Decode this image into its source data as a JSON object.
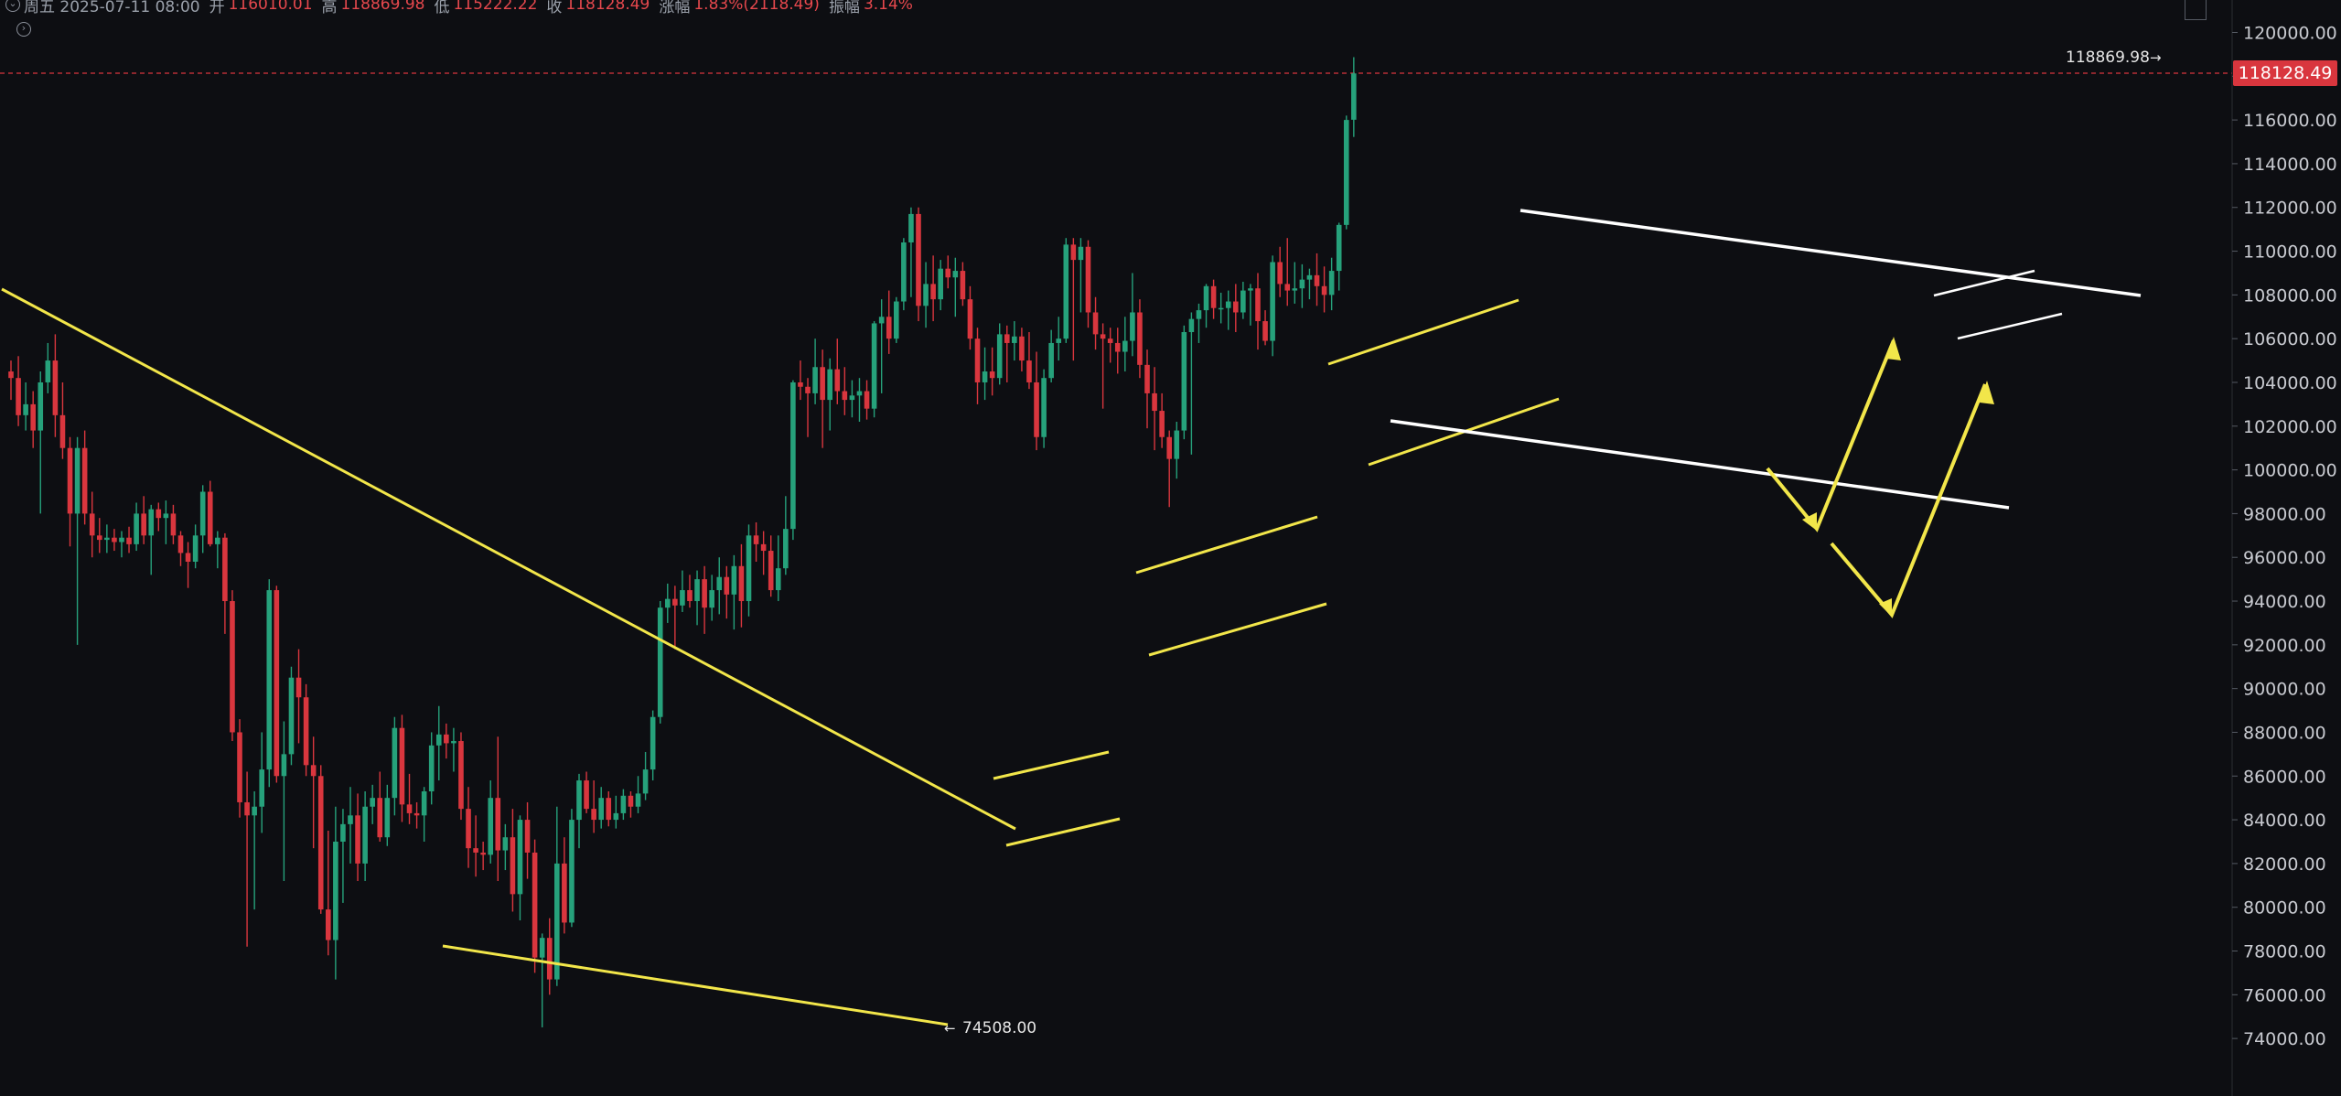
{
  "header": {
    "weekday_date": "周五 2025-07-11 08:00",
    "open_label": "开",
    "open_value": "116010.01",
    "high_label": "高",
    "high_value": "118869.98",
    "low_label": "低",
    "low_value": "115222.22",
    "close_label": "收",
    "close_value": "118128.49",
    "change_label": "涨幅",
    "change_value": "1.83%(2118.49)",
    "amplitude_label": "振幅",
    "amplitude_value": "3.14%"
  },
  "colors": {
    "up": "#26a17b",
    "down": "#d9363e",
    "background": "#0d0e12",
    "trendline_yellow": "#f2e64a",
    "trendline_white": "#ffffff"
  },
  "icons": {
    "expand": "chevron-right-icon",
    "collapse": "chevron-down-icon",
    "corner": "fullscreen-icon"
  },
  "chart_data": {
    "type": "candlestick",
    "ylim": [
      73000,
      121500
    ],
    "y_ticks": [
      "74000.00",
      "76000.00",
      "78000.00",
      "80000.00",
      "82000.00",
      "84000.00",
      "86000.00",
      "88000.00",
      "90000.00",
      "92000.00",
      "94000.00",
      "96000.00",
      "98000.00",
      "100000.00",
      "102000.00",
      "104000.00",
      "106000.00",
      "108000.00",
      "110000.00",
      "112000.00",
      "114000.00",
      "116000.00",
      "118000.00",
      "120000.00"
    ],
    "last_price": "118128.49",
    "high_marker": "118869.98",
    "low_marker": "74508.00",
    "candles": [
      [
        104500,
        105000,
        103200,
        104200
      ],
      [
        104200,
        105200,
        102000,
        102500
      ],
      [
        102500,
        104000,
        101800,
        103000
      ],
      [
        103000,
        103600,
        101000,
        101800
      ],
      [
        101800,
        104500,
        98000,
        104000
      ],
      [
        104000,
        105800,
        103500,
        105000
      ],
      [
        105000,
        106200,
        101500,
        102500
      ],
      [
        102500,
        104000,
        100500,
        101000
      ],
      [
        101000,
        101500,
        96500,
        98000
      ],
      [
        98000,
        101500,
        92000,
        101000
      ],
      [
        101000,
        101800,
        97500,
        98000
      ],
      [
        98000,
        99000,
        96000,
        97000
      ],
      [
        97000,
        97800,
        96200,
        96800
      ],
      [
        96800,
        97500,
        96200,
        96900
      ],
      [
        96900,
        97300,
        96300,
        96700
      ],
      [
        96700,
        97200,
        96000,
        96900
      ],
      [
        96900,
        97400,
        96200,
        96600
      ],
      [
        96600,
        98500,
        96300,
        98000
      ],
      [
        98000,
        98800,
        96600,
        97000
      ],
      [
        97000,
        98400,
        95200,
        98200
      ],
      [
        98200,
        98500,
        97200,
        97800
      ],
      [
        97800,
        98600,
        96600,
        98000
      ],
      [
        98000,
        98400,
        96600,
        97000
      ],
      [
        97000,
        97200,
        95600,
        96200
      ],
      [
        96200,
        96700,
        94600,
        95800
      ],
      [
        95800,
        97500,
        95500,
        97000
      ],
      [
        97000,
        99300,
        96200,
        99000
      ],
      [
        99000,
        99500,
        96500,
        96600
      ],
      [
        96600,
        97200,
        95500,
        96900
      ],
      [
        96900,
        97100,
        92500,
        94000
      ],
      [
        94000,
        94500,
        87600,
        88000
      ],
      [
        88000,
        88600,
        84100,
        84800
      ],
      [
        84800,
        86200,
        78200,
        84200
      ],
      [
        84200,
        85300,
        79900,
        84600
      ],
      [
        84600,
        88000,
        83400,
        86300
      ],
      [
        86300,
        95000,
        85500,
        94500
      ],
      [
        94500,
        94700,
        85700,
        86000
      ],
      [
        86000,
        88500,
        81200,
        87000
      ],
      [
        87000,
        91000,
        86500,
        90500
      ],
      [
        90500,
        91800,
        87500,
        89600
      ],
      [
        89600,
        90200,
        86000,
        86500
      ],
      [
        86500,
        87800,
        82700,
        86000
      ],
      [
        86000,
        86500,
        79700,
        79900
      ],
      [
        79900,
        83500,
        77800,
        78500
      ],
      [
        78500,
        84600,
        76700,
        83000
      ],
      [
        83000,
        84500,
        80200,
        83800
      ],
      [
        83800,
        85500,
        82000,
        84200
      ],
      [
        84200,
        85200,
        81200,
        82000
      ],
      [
        82000,
        85300,
        81200,
        84600
      ],
      [
        84600,
        85600,
        83800,
        85000
      ],
      [
        85000,
        86200,
        83000,
        83200
      ],
      [
        83200,
        85600,
        82800,
        85000
      ],
      [
        85000,
        88700,
        84200,
        88200
      ],
      [
        88200,
        88800,
        83900,
        84700
      ],
      [
        84700,
        86100,
        83800,
        84300
      ],
      [
        84300,
        84800,
        83600,
        84200
      ],
      [
        84200,
        85500,
        83000,
        85300
      ],
      [
        85300,
        88000,
        84700,
        87400
      ],
      [
        87400,
        89200,
        85800,
        87900
      ],
      [
        87900,
        88400,
        86800,
        87500
      ],
      [
        87500,
        88200,
        86200,
        87600
      ],
      [
        87600,
        88000,
        84000,
        84500
      ],
      [
        84500,
        85500,
        81800,
        82700
      ],
      [
        82700,
        84200,
        81400,
        82500
      ],
      [
        82500,
        83000,
        81700,
        82400
      ],
      [
        82400,
        85800,
        82000,
        85000
      ],
      [
        85000,
        87800,
        81200,
        82600
      ],
      [
        82600,
        83800,
        81700,
        83200
      ],
      [
        83200,
        84500,
        79800,
        80600
      ],
      [
        80600,
        84200,
        79400,
        84000
      ],
      [
        84000,
        84800,
        81300,
        82500
      ],
      [
        82500,
        83100,
        77000,
        77700
      ],
      [
        77700,
        78800,
        74508,
        78600
      ],
      [
        78600,
        79500,
        76000,
        76700
      ],
      [
        76700,
        84600,
        76400,
        82000
      ],
      [
        82000,
        83200,
        78800,
        79300
      ],
      [
        79300,
        84500,
        79100,
        84000
      ],
      [
        84000,
        86100,
        82700,
        85800
      ],
      [
        85800,
        86200,
        84300,
        84500
      ],
      [
        84500,
        85800,
        83400,
        84000
      ],
      [
        84000,
        85500,
        83600,
        85000
      ],
      [
        85000,
        85300,
        83700,
        84000
      ],
      [
        84000,
        85100,
        83600,
        84300
      ],
      [
        84300,
        85400,
        84000,
        85100
      ],
      [
        85100,
        85300,
        84100,
        84600
      ],
      [
        84600,
        86000,
        84300,
        85200
      ],
      [
        85200,
        87100,
        84900,
        86300
      ],
      [
        86300,
        89000,
        85800,
        88700
      ],
      [
        88700,
        94000,
        88400,
        93700
      ],
      [
        93700,
        94800,
        93000,
        94100
      ],
      [
        94100,
        94700,
        91800,
        93800
      ],
      [
        93800,
        95400,
        93500,
        94500
      ],
      [
        94500,
        95200,
        93700,
        94000
      ],
      [
        94000,
        95400,
        92900,
        95000
      ],
      [
        95000,
        95600,
        92500,
        93700
      ],
      [
        93700,
        95200,
        93100,
        94500
      ],
      [
        94500,
        96000,
        93400,
        95100
      ],
      [
        95100,
        95600,
        93200,
        94300
      ],
      [
        94300,
        96100,
        92700,
        95600
      ],
      [
        95600,
        96600,
        92800,
        94000
      ],
      [
        94000,
        97500,
        93300,
        97000
      ],
      [
        97000,
        97600,
        95800,
        96600
      ],
      [
        96600,
        97200,
        95200,
        96300
      ],
      [
        96300,
        97000,
        94200,
        94500
      ],
      [
        94500,
        97000,
        94000,
        95500
      ],
      [
        95500,
        98800,
        95200,
        97300
      ],
      [
        97300,
        104100,
        96800,
        104000
      ],
      [
        104000,
        105000,
        103200,
        103800
      ],
      [
        103800,
        104200,
        101500,
        103500
      ],
      [
        103500,
        106000,
        103000,
        104700
      ],
      [
        104700,
        105500,
        101000,
        103200
      ],
      [
        103200,
        105100,
        101800,
        104600
      ],
      [
        104600,
        106000,
        103000,
        103600
      ],
      [
        103600,
        104700,
        102500,
        103200
      ],
      [
        103200,
        104100,
        102400,
        103400
      ],
      [
        103400,
        104200,
        102200,
        103600
      ],
      [
        103600,
        104100,
        102300,
        102800
      ],
      [
        102800,
        106800,
        102400,
        106700
      ],
      [
        106700,
        107800,
        103500,
        107000
      ],
      [
        107000,
        108200,
        105300,
        106000
      ],
      [
        106000,
        107900,
        105800,
        107700
      ],
      [
        107700,
        110600,
        107300,
        110400
      ],
      [
        110400,
        112000,
        107900,
        111700
      ],
      [
        111700,
        112000,
        106800,
        107500
      ],
      [
        107500,
        109500,
        106500,
        108500
      ],
      [
        108500,
        109800,
        106800,
        107800
      ],
      [
        107800,
        109600,
        107300,
        109200
      ],
      [
        109200,
        109800,
        108300,
        108800
      ],
      [
        108800,
        109700,
        107000,
        109100
      ],
      [
        109100,
        109500,
        107500,
        107800
      ],
      [
        107800,
        108400,
        105500,
        106000
      ],
      [
        106000,
        106500,
        103000,
        104000
      ],
      [
        104000,
        105600,
        103200,
        104500
      ],
      [
        104500,
        105600,
        103400,
        104200
      ],
      [
        104200,
        106700,
        103900,
        106200
      ],
      [
        106200,
        106600,
        104000,
        105800
      ],
      [
        105800,
        106800,
        105000,
        106100
      ],
      [
        106100,
        106500,
        104500,
        105000
      ],
      [
        105000,
        106300,
        103700,
        104000
      ],
      [
        104000,
        105400,
        100900,
        101500
      ],
      [
        101500,
        104600,
        101000,
        104200
      ],
      [
        104200,
        106400,
        104000,
        105800
      ],
      [
        105800,
        107000,
        105000,
        106000
      ],
      [
        106000,
        110600,
        105800,
        110300
      ],
      [
        110300,
        110600,
        105000,
        109600
      ],
      [
        109600,
        110600,
        107200,
        110200
      ],
      [
        110200,
        110500,
        106500,
        107200
      ],
      [
        107200,
        107900,
        105500,
        106200
      ],
      [
        106200,
        106700,
        102800,
        106000
      ],
      [
        106000,
        106500,
        104900,
        105800
      ],
      [
        105800,
        106500,
        104400,
        105400
      ],
      [
        105400,
        107000,
        104500,
        105900
      ],
      [
        105900,
        109000,
        105200,
        107200
      ],
      [
        107200,
        107800,
        104200,
        104800
      ],
      [
        104800,
        105500,
        101900,
        103500
      ],
      [
        103500,
        104700,
        100900,
        102700
      ],
      [
        102700,
        103500,
        101000,
        101500
      ],
      [
        101500,
        101800,
        98300,
        100500
      ],
      [
        100500,
        102200,
        99600,
        101800
      ],
      [
        101800,
        106600,
        101400,
        106300
      ],
      [
        106300,
        107200,
        100700,
        106900
      ],
      [
        106900,
        107600,
        105800,
        107300
      ],
      [
        107300,
        108500,
        106500,
        108400
      ],
      [
        108400,
        108700,
        106900,
        107400
      ],
      [
        107400,
        108100,
        106700,
        107400
      ],
      [
        107400,
        108200,
        106400,
        107700
      ],
      [
        107700,
        108500,
        106300,
        107200
      ],
      [
        107200,
        108600,
        106900,
        108200
      ],
      [
        108200,
        108500,
        106600,
        108300
      ],
      [
        108300,
        109000,
        105500,
        106800
      ],
      [
        106800,
        107300,
        105700,
        105900
      ],
      [
        105900,
        109800,
        105200,
        109500
      ],
      [
        109500,
        110200,
        107900,
        108500
      ],
      [
        108500,
        110600,
        107500,
        108200
      ],
      [
        108200,
        109500,
        107600,
        108300
      ],
      [
        108300,
        109400,
        107400,
        108700
      ],
      [
        108700,
        109200,
        107800,
        108900
      ],
      [
        108900,
        109900,
        107500,
        108400
      ],
      [
        108400,
        109300,
        107200,
        108000
      ],
      [
        108000,
        109700,
        107300,
        109100
      ],
      [
        109100,
        111300,
        108200,
        111200
      ],
      [
        111200,
        116200,
        111000,
        116000
      ],
      [
        116010,
        118869.98,
        115222.22,
        118128.49
      ]
    ]
  }
}
